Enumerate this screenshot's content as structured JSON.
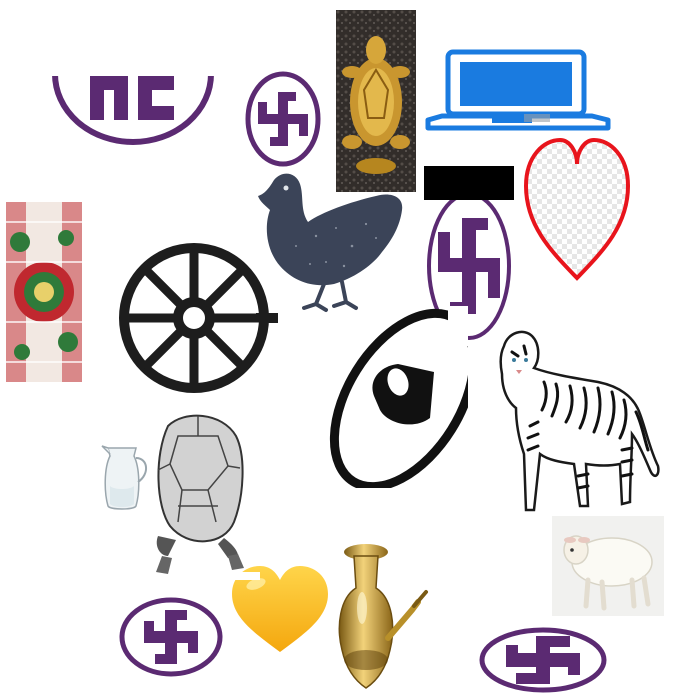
{
  "colors": {
    "symbol_purple": "#5b2a72",
    "laptop_blue": "#1a7be0",
    "heart_red": "#e8141c",
    "heart_yellow": "#ffc21a",
    "chicken_slate": "#3b4458",
    "wheel_black": "#1d1d1d",
    "gold": "#b8902a",
    "mosaic_red": "#c0282f",
    "mosaic_green": "#2f7a3a"
  },
  "items": [
    {
      "name": "swastika-emblem-top-left",
      "icon": "swastika-emblem"
    },
    {
      "name": "swastika-emblem-small",
      "icon": "swastika-emblem"
    },
    {
      "name": "golden-turtle-image",
      "icon": "golden-turtle"
    },
    {
      "name": "laptop-icon",
      "icon": "laptop"
    },
    {
      "name": "red-heart-outline-icon",
      "icon": "heart-outline"
    },
    {
      "name": "mosaic-pattern-image",
      "icon": "mosaic-pattern"
    },
    {
      "name": "chicken-silhouette-image",
      "icon": "chicken"
    },
    {
      "name": "swastika-emblem-tall",
      "icon": "swastika-emblem"
    },
    {
      "name": "dharma-wheel-icon",
      "icon": "wheel"
    },
    {
      "name": "compact-disc-icon",
      "icon": "disc"
    },
    {
      "name": "white-tiger-image",
      "icon": "tiger"
    },
    {
      "name": "glass-pitcher-image",
      "icon": "pitcher"
    },
    {
      "name": "tortoise-sketch-image",
      "icon": "tortoise"
    },
    {
      "name": "lamb-image",
      "icon": "lamb"
    },
    {
      "name": "swastika-emblem-bottom-left",
      "icon": "swastika-emblem"
    },
    {
      "name": "yellow-heart-emoji-icon",
      "icon": "heart-emoji"
    },
    {
      "name": "brass-hookah-image",
      "icon": "hookah"
    },
    {
      "name": "swastika-emblem-bottom-right",
      "icon": "swastika-emblem"
    }
  ]
}
